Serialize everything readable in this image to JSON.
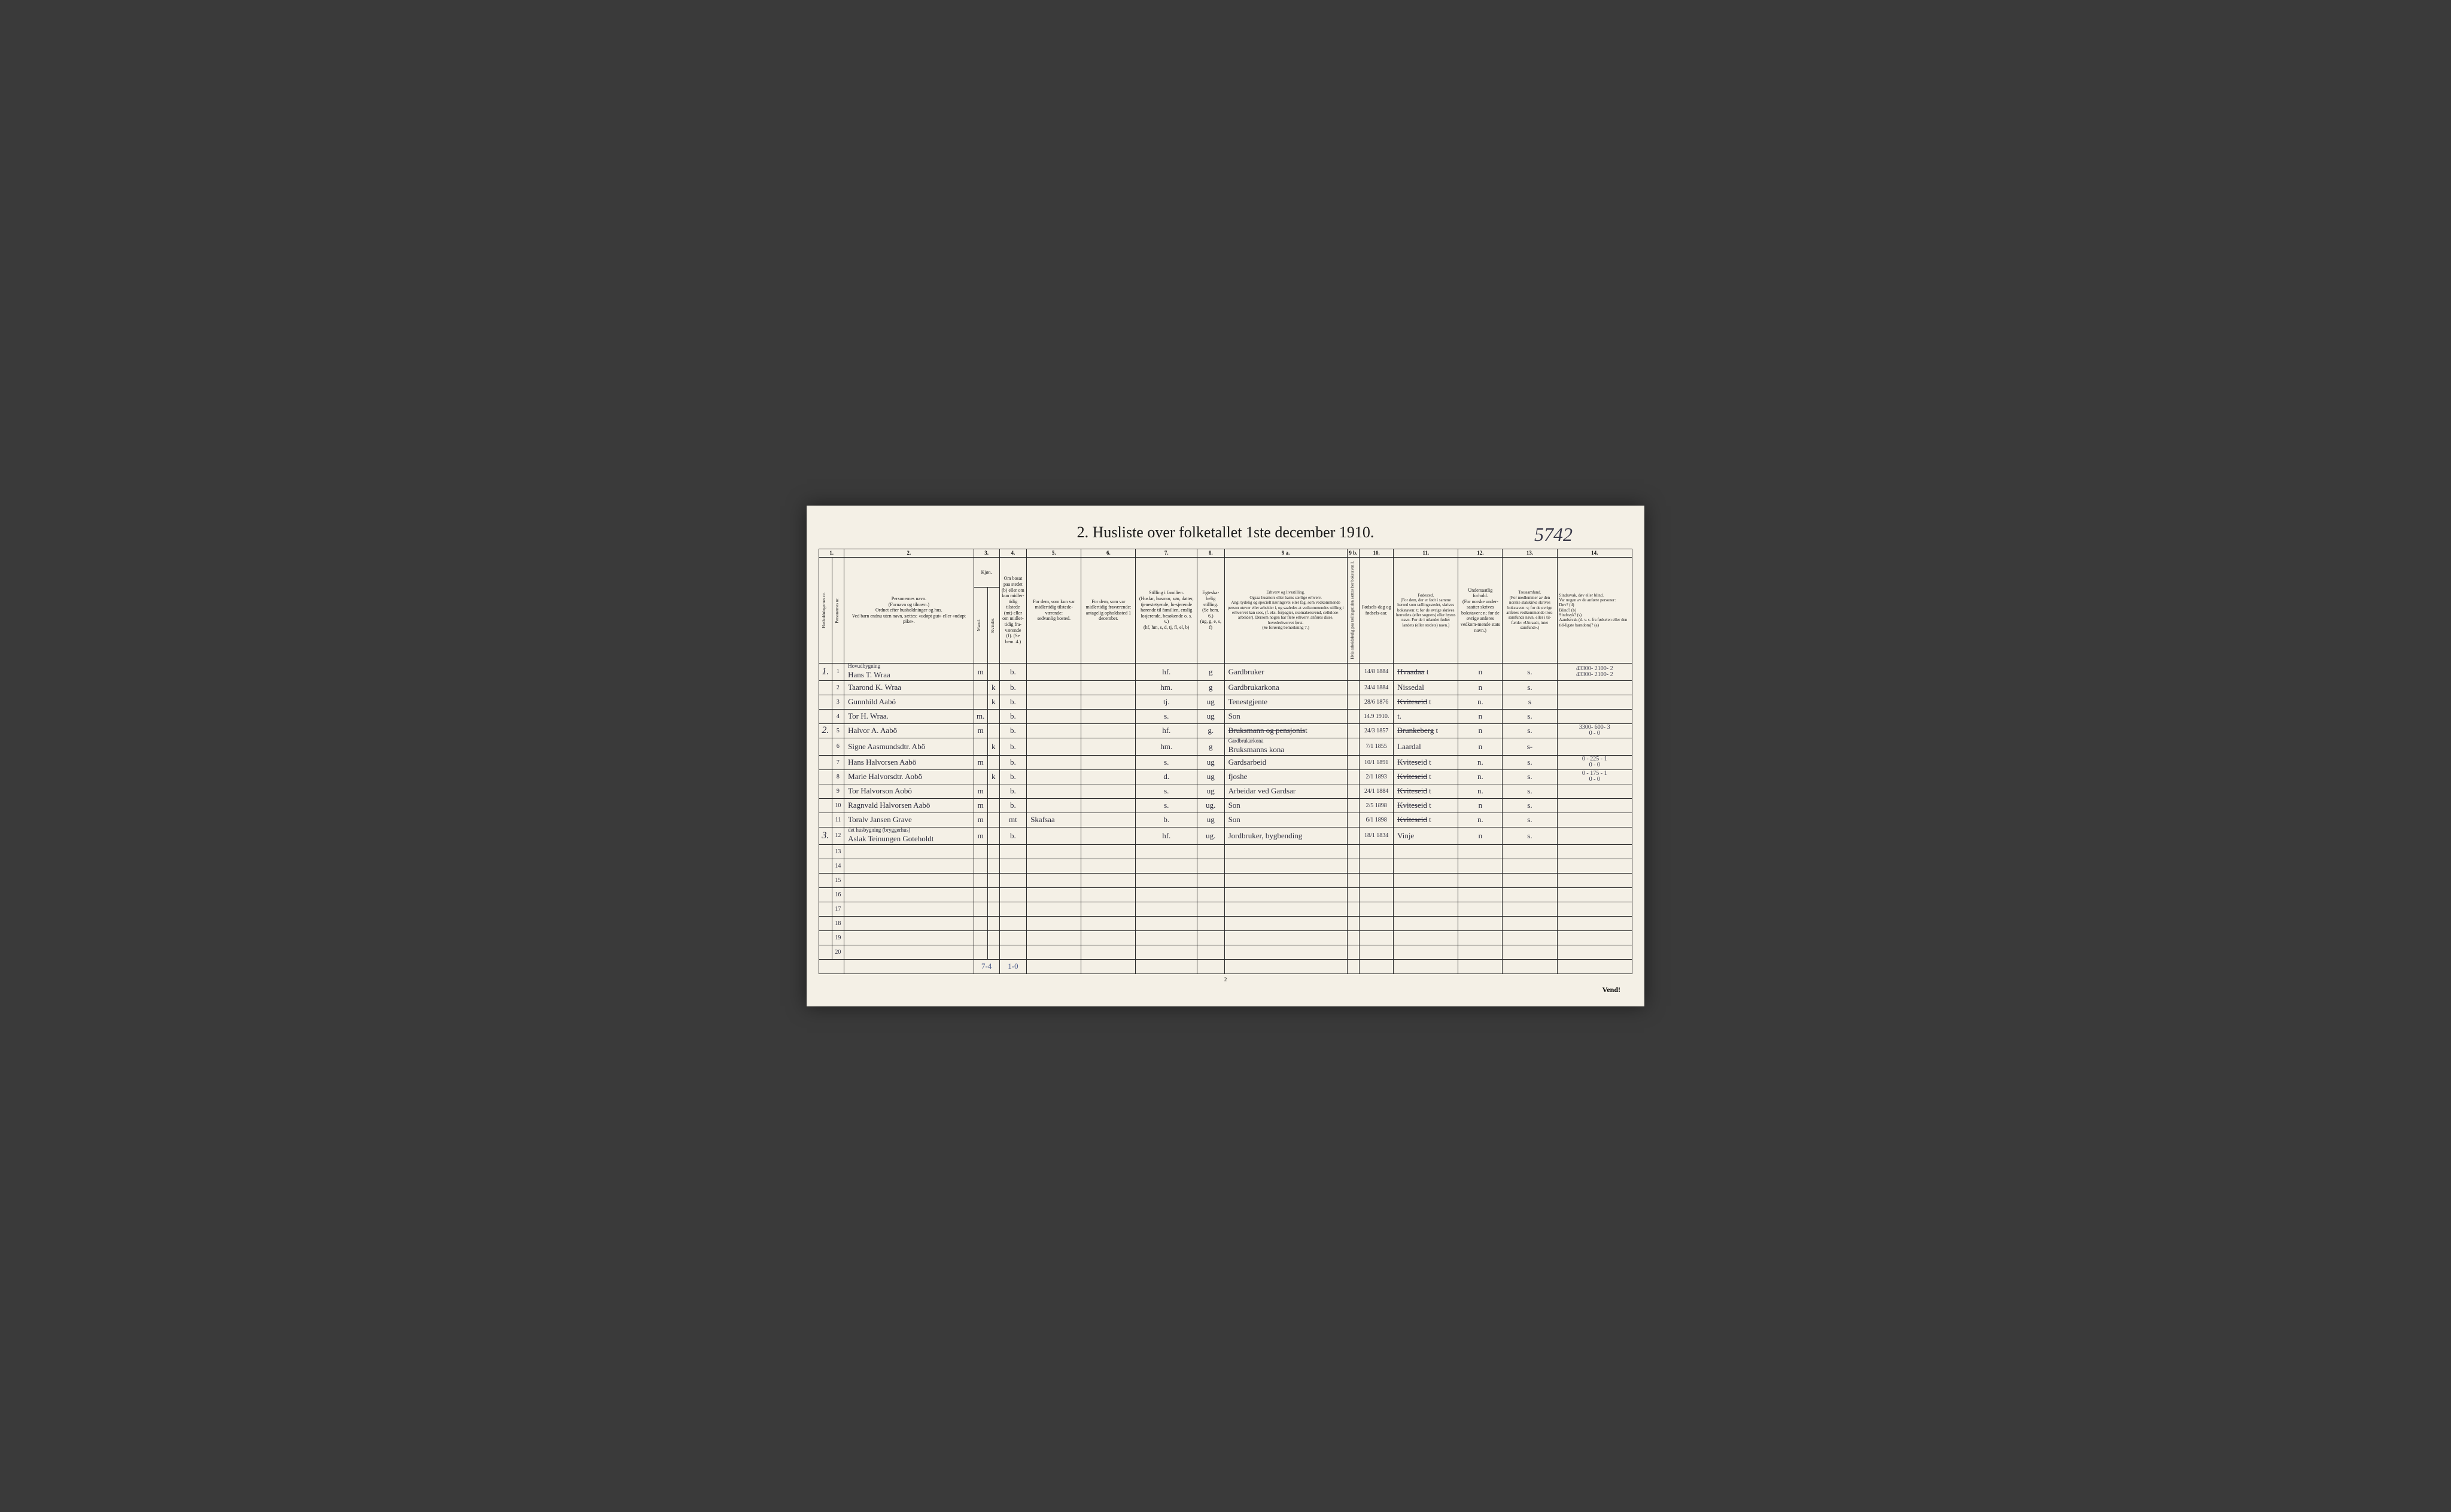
{
  "handwritten_page_number": "5742",
  "title": "2.  Husliste over folketallet 1ste december 1910.",
  "col_numbers": [
    "1.",
    "2.",
    "3.",
    "4.",
    "5.",
    "6.",
    "7.",
    "8.",
    "9 a.",
    "9 b.",
    "10.",
    "11.",
    "12.",
    "13.",
    "14."
  ],
  "headers": {
    "c1a": "Husholdningernes nr.",
    "c1b": "Personernes nr.",
    "c2": "Personernes navn.\n(Fornavn og tilnavn.)\nOrdnet efter husholdninger og hus.\nVed barn endnu uten navn, sættes: «udøpt gut» eller «udøpt pike».",
    "c3": "Kjøn.",
    "c3a": "Mænd.",
    "c3b": "Kvinder.",
    "c4": "Om bosat paa stedet (b) eller om kun midler-tidig tilstede (mt) eller om midler-tidig fra-værende (f). (Se bem. 4.)",
    "c5": "For dem, som kun var midlertidig tilstede-værende:\nsedvanlig bosted.",
    "c6": "For dem, som var midlertidig fraværende:\nantagelig opholdssted 1 december.",
    "c7": "Stilling i familien.\n(Husfar, husmor, søn, datter, tjenestetyende, lo-sjerende hørende til familien, enslig losjerende, besøkende o. s. v.)\n(hf, hm, s, d, tj, fl, el, b)",
    "c8": "Egteska-belig stilling.\n(Se bem. 6.)\n(ug, g, e, s, f)",
    "c9a": "Erhverv og livsstilling.\nOgsaa husmors eller barns særlige erhverv.\nAngi tydelig og specielt næringsvei eller fag, som vedkommende person utøver eller arbeider i, og saaledes at vedkommendes stilling i erhvervet kan sees, (f. eks. forpagter, skomakersvend, cellulose-arbeider). Dersom nogen har flere erhverv, anføres disse, hovederhvervet først.\n(Se forøvrig bemerkning 7.)",
    "c9b": "Hvis arbeidsledig paa tællingstiden sættes her bokstaven l.",
    "c10": "Fødsels-dag og fødsels-aar.",
    "c11": "Fødested.\n(For dem, der er født i samme herred som tællingsstedet, skrives bokstaven: t; for de øvrige skrives herredets (eller sognets) eller byens navn. For de i utlandet fødte: landets (eller stedets) navn.)",
    "c12": "Undersaatlig forhold.\n(For norske under-saatter skrives bokstaven: n; for de øvrige anføres vedkom-mende stats navn.)",
    "c13": "Trossamfund.\n(For medlemmer av den norske statskirke skrives bokstaven: s; for de øvrige anføres vedkommende tros-samfunds navn, eller i til-fælde: «Uttraadt, intet samfund».)",
    "c14": "Sindssvak, døv eller blind.\nVar nogen av de anførte personer:\nDøv?         (d)\nBlind?       (b)\nSindssyk?  (s)\nAandssvak (d. v. s. fra fødselen eller den tid-ligste barndom)? (a)"
  },
  "rows": [
    {
      "hh": "1.",
      "pn": "1",
      "above": "Hovudbygning",
      "name": "Hans T. Wraa",
      "m": "m",
      "k": "",
      "res": "b.",
      "c5": "",
      "c6": "",
      "c7": "hf.",
      "c8": "g",
      "c9": "Gardbruker",
      "c10": "14/8 1884",
      "c11": "Hvaadaa t",
      "c11_strike": true,
      "c12": "n",
      "c13": "s.",
      "c14": "43300- 2100- 2\n43300- 2100- 2"
    },
    {
      "hh": "",
      "pn": "2",
      "name": "Taarond K. Wraa",
      "m": "",
      "k": "k",
      "res": "b.",
      "c5": "",
      "c6": "",
      "c7": "hm.",
      "c8": "g",
      "c9": "Gardbrukarkona",
      "c10": "24/4 1884",
      "c11": "Nissedal",
      "c12": "n",
      "c13": "s.",
      "c14": ""
    },
    {
      "hh": "",
      "pn": "3",
      "name": "Gunnhild Aabö",
      "m": "",
      "k": "k",
      "res": "b.",
      "c5": "",
      "c6": "",
      "c7": "tj.",
      "c8": "ug",
      "c9": "Tenestgjente",
      "c10": "28/6 1876",
      "c11": "Kviteseid t",
      "c11_strike": true,
      "c12": "n.",
      "c13": "s",
      "c14": ""
    },
    {
      "hh": "",
      "pn": "4",
      "name": "Tor H. Wraa.",
      "m": "m.",
      "k": "",
      "res": "b.",
      "c5": "",
      "c6": "",
      "c7": "s.",
      "c8": "ug",
      "c9": "Son",
      "c10": "14.9 1910.",
      "c11": "t.",
      "c12": "n",
      "c13": "s.",
      "c14": ""
    },
    {
      "hh": "2.",
      "pn": "5",
      "name": "Halvor A. Aabö",
      "m": "m",
      "k": "",
      "res": "b.",
      "c5": "",
      "c6": "",
      "c7": "hf.",
      "c8": "g.",
      "c9": "Bruksmann og pensjonist",
      "c9_strike": true,
      "c10": "24/3 1857",
      "c11": "Brunkeberg t",
      "c11_strike": true,
      "c12": "n",
      "c13": "s.",
      "c14": "3300- 600- 3\n0 - 0"
    },
    {
      "hh": "",
      "pn": "6",
      "name": "Signe Aasmundsdtr. Abö",
      "m": "",
      "k": "k",
      "res": "b.",
      "c5": "",
      "c6": "",
      "c7": "hm.",
      "c8": "g",
      "c9": "Bruksmanns kona",
      "c9_above": "Gardbrukarkona",
      "c10": "7/1 1855",
      "c11": "Laardal",
      "c12": "n",
      "c13": "s-",
      "c14": ""
    },
    {
      "hh": "",
      "pn": "7",
      "name": "Hans Halvorsen Aabö",
      "m": "m",
      "k": "",
      "res": "b.",
      "c5": "",
      "c6": "",
      "c7": "s.",
      "c8": "ug",
      "c9": "Gardsarbeid",
      "c10": "10/1 1891",
      "c11": "Kviteseid t",
      "c11_strike": true,
      "c12": "n.",
      "c13": "s.",
      "c14": "0 - 225 - 1\n0 - 0"
    },
    {
      "hh": "",
      "pn": "8",
      "name": "Marie Halvorsdtr. Aobö",
      "m": "",
      "k": "k",
      "res": "b.",
      "c5": "",
      "c6": "",
      "c7": "d.",
      "c8": "ug",
      "c9": "fjoshe",
      "c10": "2/1 1893",
      "c11": "Kviteseid t",
      "c11_strike": true,
      "c12": "n.",
      "c13": "s.",
      "c14": "0 - 175 - 1\n0 - 0"
    },
    {
      "hh": "",
      "pn": "9",
      "name": "Tor Halvorson Aobö",
      "m": "m",
      "k": "",
      "res": "b.",
      "c5": "",
      "c6": "",
      "c7": "s.",
      "c8": "ug",
      "c9": "Arbeidar ved\nGardsar",
      "c10": "24/1 1884",
      "c11": "Kviteseid t",
      "c11_strike": true,
      "c12": "n.",
      "c13": "s.",
      "c14": ""
    },
    {
      "hh": "",
      "pn": "10",
      "name": "Ragnvald Halvorsen Aabö",
      "m": "m",
      "k": "",
      "res": "b.",
      "c5": "",
      "c6": "",
      "c7": "s.",
      "c8": "ug.",
      "c9": "Son",
      "c10": "2/5 1898",
      "c11": "Kviteseid t",
      "c11_strike": true,
      "c12": "n",
      "c13": "s.",
      "c14": ""
    },
    {
      "hh": "",
      "pn": "11",
      "name": "Toralv Jansen Grave",
      "m": "m",
      "k": "",
      "res": "mt",
      "c5": "Skafsaa",
      "c6": "",
      "c7": "b.",
      "c8": "ug",
      "c9": "Son",
      "c10": "6/1 1898",
      "c11": "Kviteseid t",
      "c11_strike": true,
      "c12": "n.",
      "c13": "s.",
      "c14": ""
    },
    {
      "hh": "3.",
      "pn": "12",
      "above": "det husbygning (bryggerhus)",
      "name": "Aslak Teinungen Goteholdt",
      "m": "m",
      "k": "",
      "res": "b.",
      "c5": "",
      "c6": "",
      "c7": "hf.",
      "c8": "ug.",
      "c9": "Jordbruker, bygbending",
      "c10": "18/1 1834",
      "c11": "Vinje",
      "c12": "n",
      "c13": "s.",
      "c14": ""
    },
    {
      "hh": "",
      "pn": "13",
      "name": "",
      "m": "",
      "k": "",
      "res": "",
      "c5": "",
      "c6": "",
      "c7": "",
      "c8": "",
      "c9": "",
      "c10": "",
      "c11": "",
      "c12": "",
      "c13": "",
      "c14": ""
    },
    {
      "hh": "",
      "pn": "14",
      "name": "",
      "m": "",
      "k": "",
      "res": "",
      "c5": "",
      "c6": "",
      "c7": "",
      "c8": "",
      "c9": "",
      "c10": "",
      "c11": "",
      "c12": "",
      "c13": "",
      "c14": ""
    },
    {
      "hh": "",
      "pn": "15",
      "name": "",
      "m": "",
      "k": "",
      "res": "",
      "c5": "",
      "c6": "",
      "c7": "",
      "c8": "",
      "c9": "",
      "c10": "",
      "c11": "",
      "c12": "",
      "c13": "",
      "c14": ""
    },
    {
      "hh": "",
      "pn": "16",
      "name": "",
      "m": "",
      "k": "",
      "res": "",
      "c5": "",
      "c6": "",
      "c7": "",
      "c8": "",
      "c9": "",
      "c10": "",
      "c11": "",
      "c12": "",
      "c13": "",
      "c14": ""
    },
    {
      "hh": "",
      "pn": "17",
      "name": "",
      "m": "",
      "k": "",
      "res": "",
      "c5": "",
      "c6": "",
      "c7": "",
      "c8": "",
      "c9": "",
      "c10": "",
      "c11": "",
      "c12": "",
      "c13": "",
      "c14": ""
    },
    {
      "hh": "",
      "pn": "18",
      "name": "",
      "m": "",
      "k": "",
      "res": "",
      "c5": "",
      "c6": "",
      "c7": "",
      "c8": "",
      "c9": "",
      "c10": "",
      "c11": "",
      "c12": "",
      "c13": "",
      "c14": ""
    },
    {
      "hh": "",
      "pn": "19",
      "name": "",
      "m": "",
      "k": "",
      "res": "",
      "c5": "",
      "c6": "",
      "c7": "",
      "c8": "",
      "c9": "",
      "c10": "",
      "c11": "",
      "c12": "",
      "c13": "",
      "c14": ""
    },
    {
      "hh": "",
      "pn": "20",
      "name": "",
      "m": "",
      "k": "",
      "res": "",
      "c5": "",
      "c6": "",
      "c7": "",
      "c8": "",
      "c9": "",
      "c10": "",
      "c11": "",
      "c12": "",
      "c13": "",
      "c14": ""
    }
  ],
  "totals": {
    "mk": "7-4",
    "res": "1-0"
  },
  "footer_page": "2",
  "vend": "Vend!",
  "col_widths": {
    "c1a": "18px",
    "c1b": "18px",
    "c2": "190px",
    "c3a": "14px",
    "c3b": "14px",
    "c4": "40px",
    "c5": "80px",
    "c6": "80px",
    "c7": "90px",
    "c8": "40px",
    "c9a": "180px",
    "c9b": "18px",
    "c10": "50px",
    "c11": "95px",
    "c12": "65px",
    "c13": "80px",
    "c14": "110px"
  }
}
